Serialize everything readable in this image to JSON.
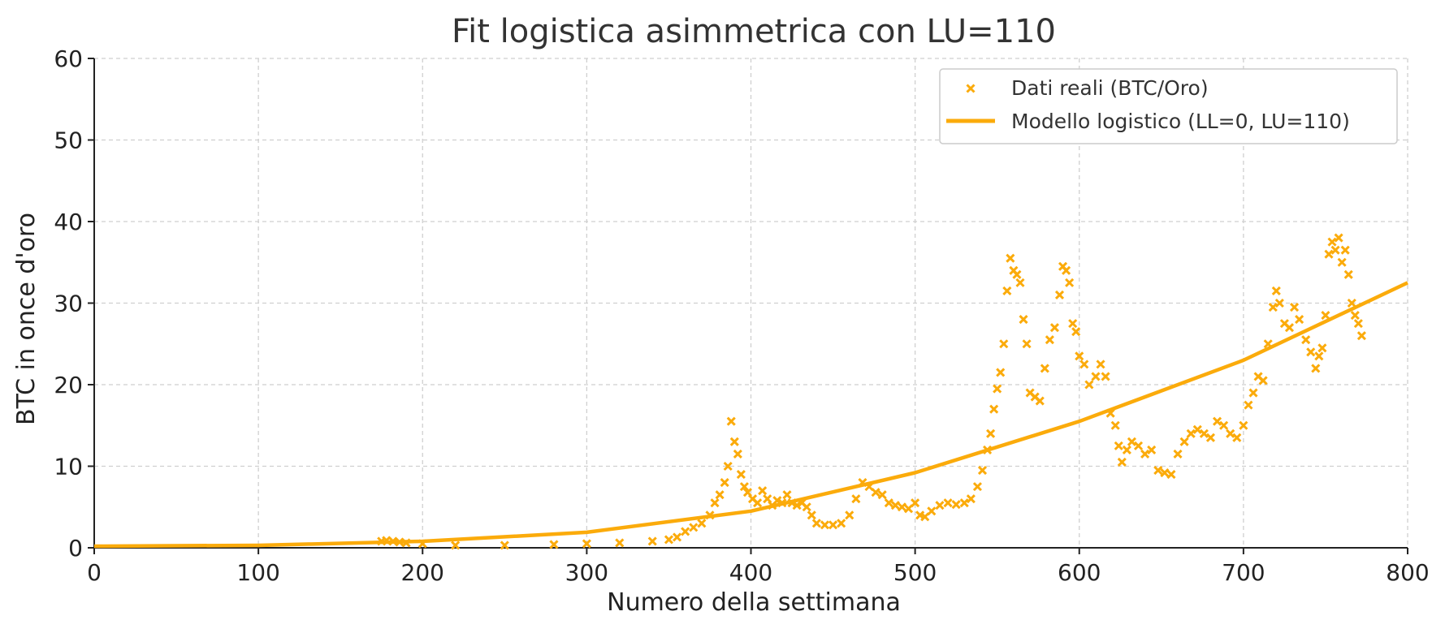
{
  "chart_data": {
    "type": "scatter",
    "title": "Fit logistica asimmetrica con LU=110",
    "xlabel": "Numero della settimana",
    "ylabel": "BTC in once d'oro",
    "xlim": [
      0,
      800
    ],
    "ylim": [
      0,
      60
    ],
    "xticks": [
      0,
      100,
      200,
      300,
      400,
      500,
      600,
      700,
      800
    ],
    "yticks": [
      0,
      10,
      20,
      30,
      40,
      50,
      60
    ],
    "grid": true,
    "legend_position": "top-right",
    "colors": {
      "series": "#fbab0b",
      "grid": "#cfcfcf",
      "axis": "#222222"
    },
    "series": [
      {
        "name": "Dati reali (BTC/Oro)",
        "kind": "scatter",
        "marker": "x",
        "points": [
          [
            175,
            0.8
          ],
          [
            178,
            0.9
          ],
          [
            182,
            0.8
          ],
          [
            186,
            0.7
          ],
          [
            190,
            0.6
          ],
          [
            200,
            0.5
          ],
          [
            220,
            0.3
          ],
          [
            250,
            0.3
          ],
          [
            280,
            0.4
          ],
          [
            300,
            0.5
          ],
          [
            320,
            0.6
          ],
          [
            340,
            0.8
          ],
          [
            350,
            1.0
          ],
          [
            355,
            1.3
          ],
          [
            360,
            2.0
          ],
          [
            365,
            2.5
          ],
          [
            370,
            3.0
          ],
          [
            375,
            4.0
          ],
          [
            378,
            5.5
          ],
          [
            381,
            6.5
          ],
          [
            384,
            8.0
          ],
          [
            386,
            10.0
          ],
          [
            388,
            15.5
          ],
          [
            390,
            13.0
          ],
          [
            392,
            11.5
          ],
          [
            394,
            9.0
          ],
          [
            396,
            7.5
          ],
          [
            398,
            6.8
          ],
          [
            401,
            6.0
          ],
          [
            404,
            5.5
          ],
          [
            407,
            7.0
          ],
          [
            410,
            6.0
          ],
          [
            413,
            5.2
          ],
          [
            416,
            5.8
          ],
          [
            419,
            5.5
          ],
          [
            422,
            6.5
          ],
          [
            425,
            5.5
          ],
          [
            428,
            5.2
          ],
          [
            431,
            5.5
          ],
          [
            434,
            5.0
          ],
          [
            437,
            4.0
          ],
          [
            440,
            3.0
          ],
          [
            445,
            2.8
          ],
          [
            450,
            2.8
          ],
          [
            455,
            3.0
          ],
          [
            460,
            4.0
          ],
          [
            464,
            6.0
          ],
          [
            468,
            8.0
          ],
          [
            472,
            7.5
          ],
          [
            476,
            6.8
          ],
          [
            480,
            6.5
          ],
          [
            484,
            5.5
          ],
          [
            488,
            5.2
          ],
          [
            492,
            5.0
          ],
          [
            496,
            4.8
          ],
          [
            500,
            5.5
          ],
          [
            503,
            4.0
          ],
          [
            506,
            3.8
          ],
          [
            510,
            4.5
          ],
          [
            515,
            5.2
          ],
          [
            520,
            5.5
          ],
          [
            525,
            5.3
          ],
          [
            530,
            5.5
          ],
          [
            534,
            6.0
          ],
          [
            538,
            7.5
          ],
          [
            541,
            9.5
          ],
          [
            544,
            12.0
          ],
          [
            546,
            14.0
          ],
          [
            548,
            17.0
          ],
          [
            550,
            19.5
          ],
          [
            552,
            21.5
          ],
          [
            554,
            25.0
          ],
          [
            556,
            31.5
          ],
          [
            558,
            35.5
          ],
          [
            560,
            34.0
          ],
          [
            562,
            33.5
          ],
          [
            564,
            32.5
          ],
          [
            566,
            28.0
          ],
          [
            568,
            25.0
          ],
          [
            570,
            19.0
          ],
          [
            573,
            18.5
          ],
          [
            576,
            18.0
          ],
          [
            579,
            22.0
          ],
          [
            582,
            25.5
          ],
          [
            585,
            27.0
          ],
          [
            588,
            31.0
          ],
          [
            590,
            34.5
          ],
          [
            592,
            34.0
          ],
          [
            594,
            32.5
          ],
          [
            596,
            27.5
          ],
          [
            598,
            26.5
          ],
          [
            600,
            23.5
          ],
          [
            603,
            22.5
          ],
          [
            606,
            20.0
          ],
          [
            610,
            21.0
          ],
          [
            613,
            22.5
          ],
          [
            616,
            21.0
          ],
          [
            619,
            16.5
          ],
          [
            622,
            15.0
          ],
          [
            624,
            12.5
          ],
          [
            626,
            10.5
          ],
          [
            629,
            12.0
          ],
          [
            632,
            13.0
          ],
          [
            636,
            12.5
          ],
          [
            640,
            11.5
          ],
          [
            644,
            12.0
          ],
          [
            648,
            9.5
          ],
          [
            652,
            9.2
          ],
          [
            656,
            9.0
          ],
          [
            660,
            11.5
          ],
          [
            664,
            13.0
          ],
          [
            668,
            14.0
          ],
          [
            672,
            14.5
          ],
          [
            676,
            14.0
          ],
          [
            680,
            13.5
          ],
          [
            684,
            15.5
          ],
          [
            688,
            15.0
          ],
          [
            692,
            14.0
          ],
          [
            696,
            13.5
          ],
          [
            700,
            15.0
          ],
          [
            703,
            17.5
          ],
          [
            706,
            19.0
          ],
          [
            709,
            21.0
          ],
          [
            712,
            20.5
          ],
          [
            715,
            25.0
          ],
          [
            718,
            29.5
          ],
          [
            720,
            31.5
          ],
          [
            722,
            30.0
          ],
          [
            725,
            27.5
          ],
          [
            728,
            27.0
          ],
          [
            731,
            29.5
          ],
          [
            734,
            28.0
          ],
          [
            738,
            25.5
          ],
          [
            741,
            24.0
          ],
          [
            744,
            22.0
          ],
          [
            746,
            23.5
          ],
          [
            748,
            24.5
          ],
          [
            750,
            28.5
          ],
          [
            752,
            36.0
          ],
          [
            754,
            37.5
          ],
          [
            756,
            36.5
          ],
          [
            758,
            38.0
          ],
          [
            760,
            35.0
          ],
          [
            762,
            36.5
          ],
          [
            764,
            33.5
          ],
          [
            766,
            30.0
          ],
          [
            768,
            28.5
          ],
          [
            770,
            27.5
          ],
          [
            772,
            26.0
          ]
        ]
      },
      {
        "name": "Modello logistico (LL=0, LU=110)",
        "kind": "line",
        "points": [
          [
            0,
            0.2
          ],
          [
            100,
            0.3
          ],
          [
            200,
            0.8
          ],
          [
            300,
            1.9
          ],
          [
            400,
            4.5
          ],
          [
            500,
            9.2
          ],
          [
            600,
            15.5
          ],
          [
            700,
            23.0
          ],
          [
            800,
            32.5
          ]
        ]
      }
    ]
  }
}
